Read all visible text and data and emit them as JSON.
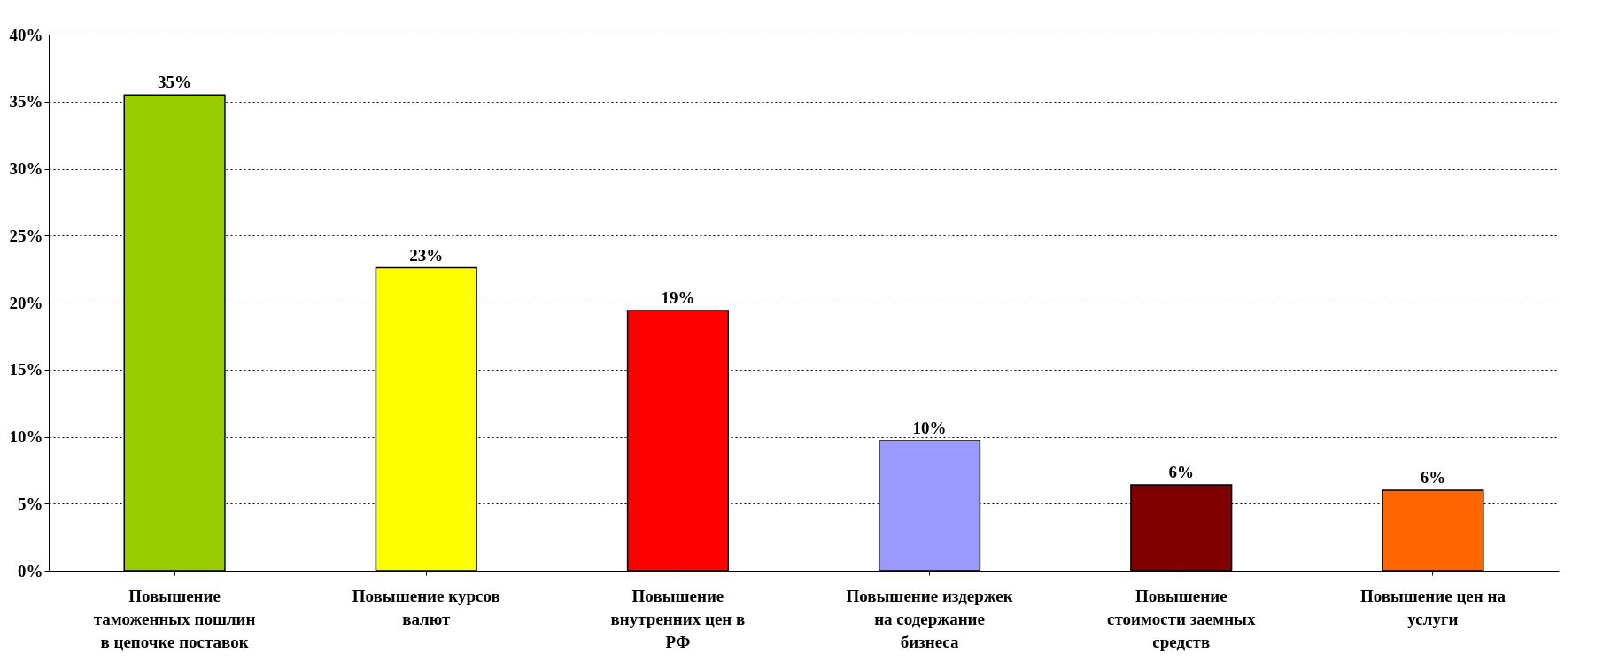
{
  "chart_data": {
    "type": "bar",
    "categories": [
      "Повышение таможенных пошлин в цепочке поставок",
      "Повышение курсов валют",
      "Повышение внутренних цен в РФ",
      "Повышение издержек на содержание бизнеса",
      "Повышение стоимости заемных средств",
      "Повышение цен на услуги"
    ],
    "values": [
      35.5,
      22.6,
      19.4,
      9.7,
      6.4,
      6.0
    ],
    "colors": [
      "#99cc00",
      "#ffff00",
      "#ff0000",
      "#9999ff",
      "#800000",
      "#ff6600"
    ],
    "value_labels": [
      "35%",
      "23%",
      "19%",
      "10%",
      "6%",
      "6%"
    ],
    "ylim": [
      0,
      40
    ],
    "yticks": [
      {
        "value": 0,
        "label": "0%"
      },
      {
        "value": 5,
        "label": "5%"
      },
      {
        "value": 10,
        "label": "10%"
      },
      {
        "value": 15,
        "label": "15%"
      },
      {
        "value": 20,
        "label": "20%"
      },
      {
        "value": 25,
        "label": "25%"
      },
      {
        "value": 30,
        "label": "30%"
      },
      {
        "value": 35,
        "label": "35%"
      },
      {
        "value": 40,
        "label": "40%"
      }
    ],
    "grid": "y"
  }
}
